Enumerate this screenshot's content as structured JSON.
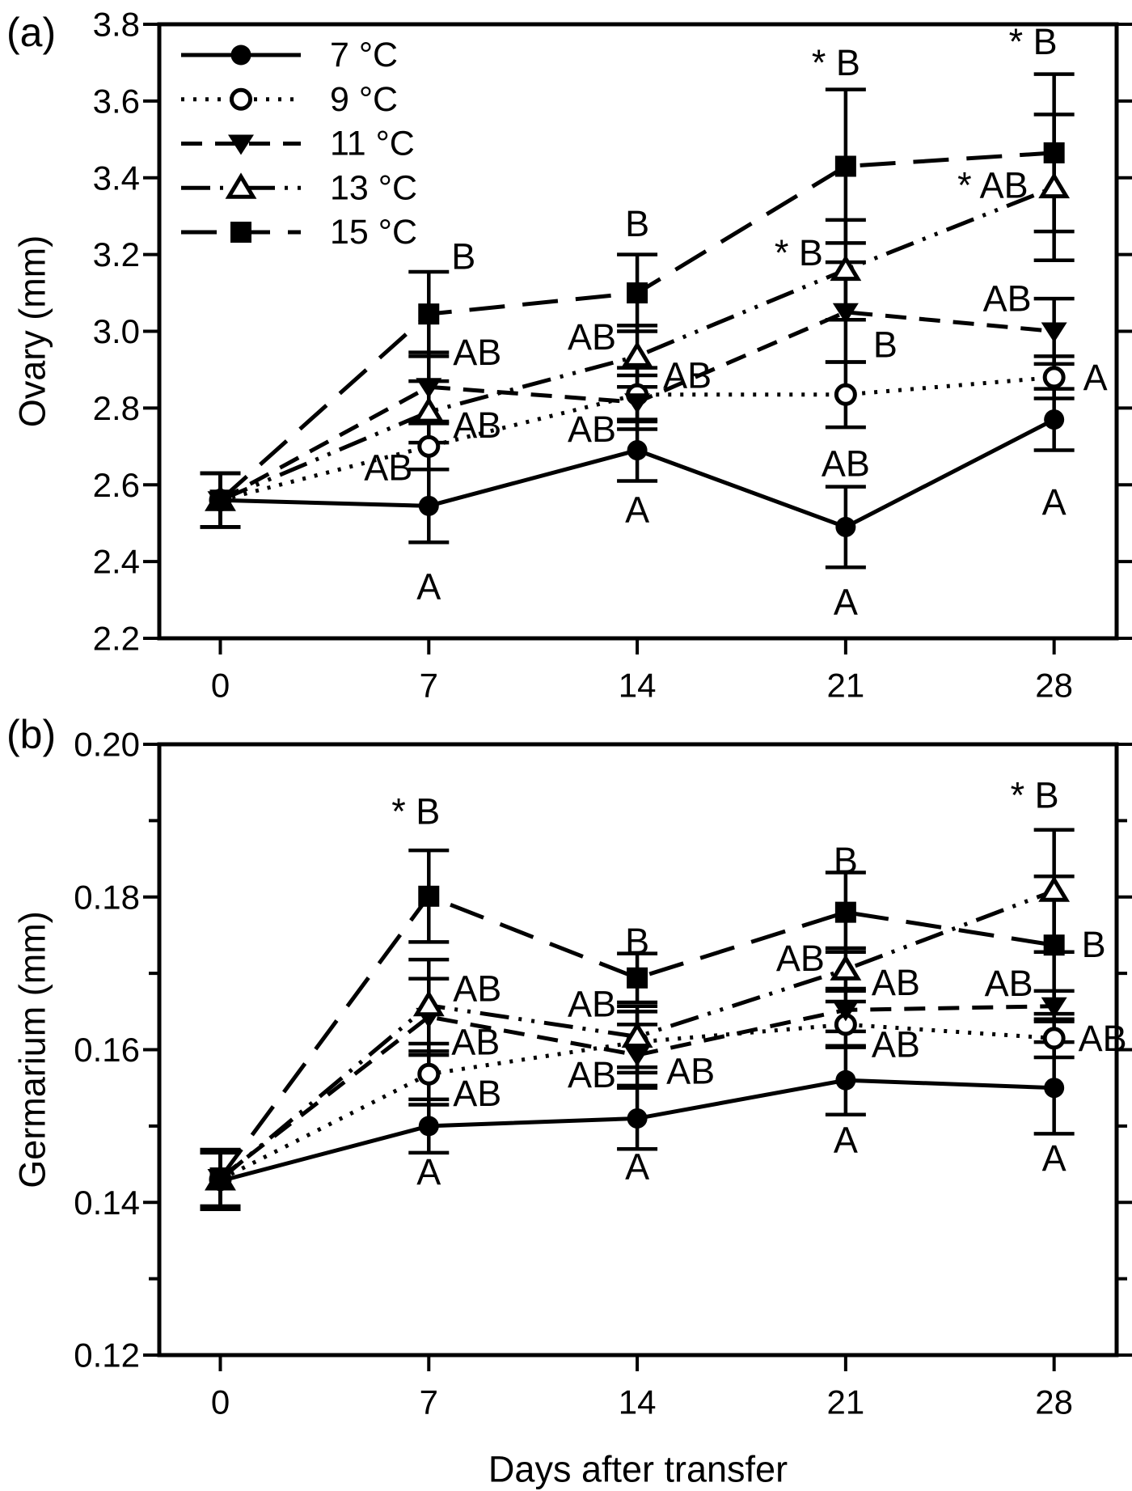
{
  "figure": {
    "background": "#ffffff",
    "ink": "#000000",
    "xlabel": "Days after transfer"
  },
  "legend": {
    "entries": [
      "7 °C",
      "9 °C",
      "11 °C",
      "13 °C",
      "15 °C"
    ]
  },
  "chart_data": [
    {
      "id": "a",
      "type": "line",
      "panel_label": "(a)",
      "ylabel": "Ovary (mm)",
      "xlabel": "",
      "x": [
        0,
        7,
        14,
        21,
        28
      ],
      "ylim": [
        2.2,
        3.8
      ],
      "ytick_step": 0.2,
      "ytick_minor_step": null,
      "ytick_decimals": 1,
      "grid": false,
      "legend_position": "top-left-inside",
      "series": [
        {
          "name": "7 °C",
          "marker": "circle-filled",
          "dash": "solid",
          "values": [
            2.56,
            2.545,
            2.69,
            2.49,
            2.77
          ],
          "errors": [
            0.07,
            0.095,
            0.08,
            0.105,
            0.08
          ]
        },
        {
          "name": "9 °C",
          "marker": "circle-open",
          "dash": "dot",
          "values": [
            2.56,
            2.7,
            2.835,
            2.835,
            2.88
          ],
          "errors": [
            0.07,
            0.06,
            0.07,
            0.085,
            0.055
          ]
        },
        {
          "name": "11 °C",
          "marker": "triangle-down-filled",
          "dash": "dash",
          "values": [
            2.56,
            2.855,
            2.815,
            3.05,
            3.0
          ],
          "errors": [
            0.07,
            0.09,
            0.07,
            0.13,
            0.085
          ]
        },
        {
          "name": "13 °C",
          "marker": "triangle-up-open",
          "dash": "dashdotdot",
          "values": [
            2.56,
            2.79,
            2.935,
            3.16,
            3.375
          ],
          "errors": [
            0.07,
            0.08,
            0.08,
            0.13,
            0.19
          ]
        },
        {
          "name": "15 °C",
          "marker": "square-filled",
          "dash": "longdash",
          "values": [
            2.56,
            3.045,
            3.1,
            3.43,
            3.465
          ],
          "errors": [
            0.07,
            0.11,
            0.1,
            0.2,
            0.205
          ]
        }
      ],
      "significance_labels": [
        {
          "day": 7,
          "v": 3.195,
          "dx": 28,
          "anchor": "start",
          "text": "B"
        },
        {
          "day": 7,
          "v": 2.945,
          "dx": 30,
          "anchor": "start",
          "text": "AB"
        },
        {
          "day": 7,
          "v": 2.755,
          "dx": 30,
          "anchor": "start",
          "text": "AB"
        },
        {
          "day": 7,
          "v": 2.645,
          "dx": -20,
          "anchor": "end",
          "text": "AB"
        },
        {
          "day": 7,
          "v": 2.335,
          "dx": 0,
          "anchor": "middle",
          "text": "A"
        },
        {
          "day": 14,
          "v": 3.28,
          "dx": 0,
          "anchor": "middle",
          "text": "B"
        },
        {
          "day": 14,
          "v": 2.985,
          "dx": -26,
          "anchor": "end",
          "text": "AB"
        },
        {
          "day": 14,
          "v": 2.885,
          "dx": 32,
          "anchor": "start",
          "text": "AB"
        },
        {
          "day": 14,
          "v": 2.745,
          "dx": -26,
          "anchor": "end",
          "text": "AB"
        },
        {
          "day": 14,
          "v": 2.535,
          "dx": 0,
          "anchor": "middle",
          "text": "A"
        },
        {
          "day": 21,
          "v": 3.7,
          "dx": -12,
          "anchor": "middle",
          "text": "* B"
        },
        {
          "day": 21,
          "v": 3.205,
          "dx": -28,
          "anchor": "end",
          "text": "* B"
        },
        {
          "day": 21,
          "v": 2.965,
          "dx": 34,
          "anchor": "start",
          "text": "B"
        },
        {
          "day": 21,
          "v": 2.655,
          "dx": 0,
          "anchor": "middle",
          "text": "AB"
        },
        {
          "day": 21,
          "v": 2.295,
          "dx": 0,
          "anchor": "middle",
          "text": "A"
        },
        {
          "day": 28,
          "v": 3.755,
          "dx": -26,
          "anchor": "middle",
          "text": "* B"
        },
        {
          "day": 28,
          "v": 3.38,
          "dx": -32,
          "anchor": "end",
          "text": "* AB"
        },
        {
          "day": 28,
          "v": 3.085,
          "dx": -28,
          "anchor": "end",
          "text": "AB"
        },
        {
          "day": 28,
          "v": 2.88,
          "dx": 36,
          "anchor": "start",
          "text": "A"
        },
        {
          "day": 28,
          "v": 2.555,
          "dx": 0,
          "anchor": "middle",
          "text": "A"
        }
      ]
    },
    {
      "id": "b",
      "type": "line",
      "panel_label": "(b)",
      "ylabel": "Germarium (mm)",
      "xlabel": "Days after transfer",
      "x": [
        0,
        7,
        14,
        21,
        28
      ],
      "ylim": [
        0.12,
        0.2
      ],
      "ytick_step": 0.02,
      "ytick_minor_step": 0.01,
      "ytick_decimals": 2,
      "grid": false,
      "legend_position": "none",
      "series": [
        {
          "name": "7 °C",
          "marker": "circle-filled",
          "dash": "solid",
          "values": [
            0.1428,
            0.15,
            0.151,
            0.156,
            0.155
          ],
          "errors": [
            0.0037,
            0.0035,
            0.004,
            0.0045,
            0.006
          ]
        },
        {
          "name": "9 °C",
          "marker": "circle-open",
          "dash": "dot",
          "values": [
            0.143,
            0.1568,
            0.161,
            0.1633,
            0.1615
          ],
          "errors": [
            0.0037,
            0.004,
            0.004,
            0.003,
            0.0025
          ]
        },
        {
          "name": "11 °C",
          "marker": "triangle-down-filled",
          "dash": "dash",
          "values": [
            0.1432,
            0.1643,
            0.1593,
            0.1652,
            0.1657
          ],
          "errors": [
            0.0037,
            0.005,
            0.004,
            0.0028,
            0.002
          ]
        },
        {
          "name": "13 °C",
          "marker": "triangle-up-open",
          "dash": "dashdotdot",
          "values": [
            0.143,
            0.1658,
            0.1617,
            0.1705,
            0.1808
          ],
          "errors": [
            0.0037,
            0.006,
            0.004,
            0.0028,
            0.008
          ]
        },
        {
          "name": "15 °C",
          "marker": "square-filled",
          "dash": "longdash",
          "values": [
            0.1432,
            0.1801,
            0.1694,
            0.178,
            0.1737
          ],
          "errors": [
            0.0037,
            0.006,
            0.0032,
            0.0052,
            0.009
          ]
        }
      ],
      "significance_labels": [
        {
          "day": 7,
          "v": 0.1912,
          "dx": -16,
          "anchor": "middle",
          "text": "* B"
        },
        {
          "day": 7,
          "v": 0.168,
          "dx": 30,
          "anchor": "start",
          "text": "AB"
        },
        {
          "day": 7,
          "v": 0.161,
          "dx": 28,
          "anchor": "start",
          "text": "AB"
        },
        {
          "day": 7,
          "v": 0.1543,
          "dx": 30,
          "anchor": "start",
          "text": "AB"
        },
        {
          "day": 7,
          "v": 0.144,
          "dx": 0,
          "anchor": "middle",
          "text": "A"
        },
        {
          "day": 14,
          "v": 0.1742,
          "dx": 0,
          "anchor": "middle",
          "text": "B"
        },
        {
          "day": 14,
          "v": 0.166,
          "dx": -26,
          "anchor": "end",
          "text": "AB"
        },
        {
          "day": 14,
          "v": 0.1572,
          "dx": 36,
          "anchor": "start",
          "text": "AB"
        },
        {
          "day": 14,
          "v": 0.1567,
          "dx": -26,
          "anchor": "end",
          "text": "AB"
        },
        {
          "day": 14,
          "v": 0.1447,
          "dx": 0,
          "anchor": "middle",
          "text": "A"
        },
        {
          "day": 21,
          "v": 0.1848,
          "dx": 0,
          "anchor": "middle",
          "text": "B"
        },
        {
          "day": 21,
          "v": 0.172,
          "dx": -26,
          "anchor": "end",
          "text": "AB"
        },
        {
          "day": 21,
          "v": 0.1688,
          "dx": 32,
          "anchor": "start",
          "text": "AB"
        },
        {
          "day": 21,
          "v": 0.1607,
          "dx": 32,
          "anchor": "start",
          "text": "AB"
        },
        {
          "day": 21,
          "v": 0.1482,
          "dx": 0,
          "anchor": "middle",
          "text": "A"
        },
        {
          "day": 28,
          "v": 0.1933,
          "dx": -24,
          "anchor": "middle",
          "text": "* B"
        },
        {
          "day": 28,
          "v": 0.1738,
          "dx": 34,
          "anchor": "start",
          "text": "B"
        },
        {
          "day": 28,
          "v": 0.1687,
          "dx": -26,
          "anchor": "end",
          "text": "AB"
        },
        {
          "day": 28,
          "v": 0.1615,
          "dx": 30,
          "anchor": "start",
          "text": "AB"
        },
        {
          "day": 28,
          "v": 0.1458,
          "dx": 0,
          "anchor": "middle",
          "text": "A"
        }
      ]
    }
  ]
}
